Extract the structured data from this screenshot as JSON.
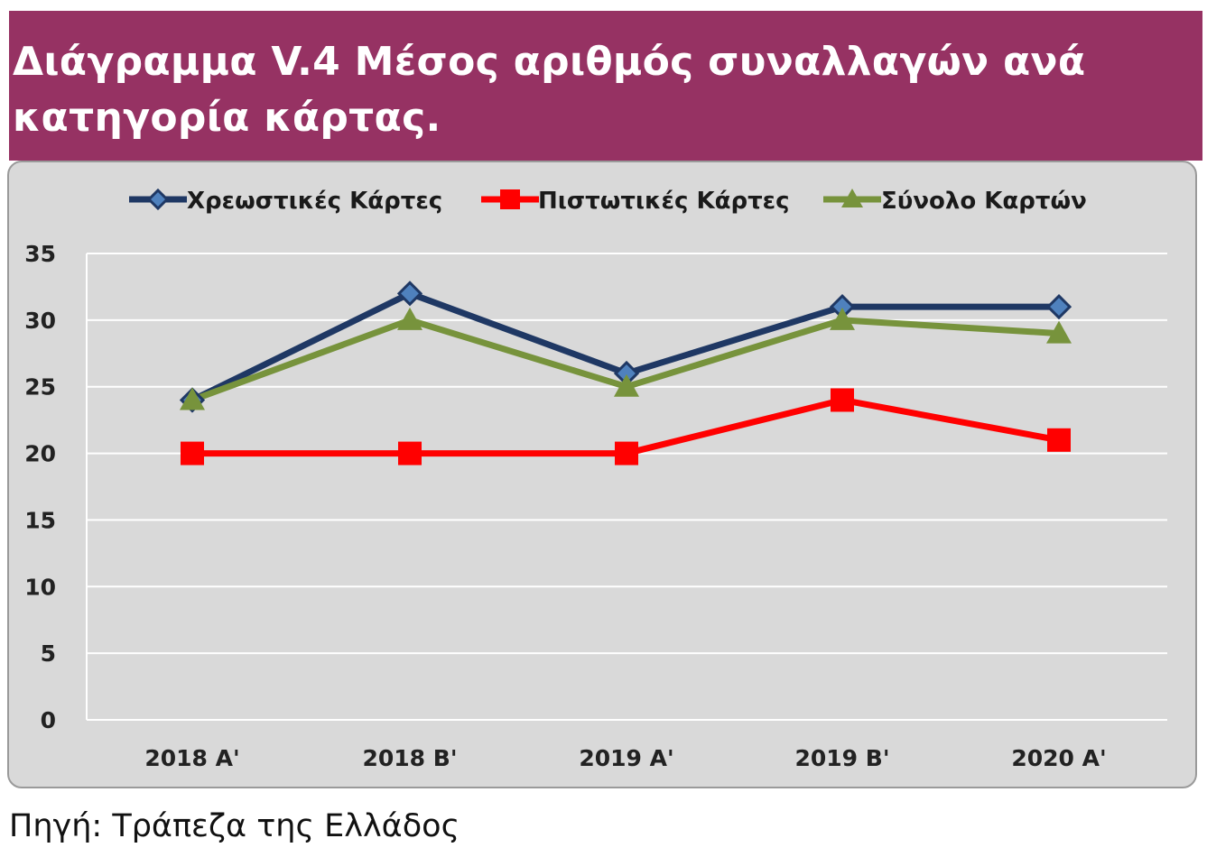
{
  "header": {
    "title": "Διάγραμμα V.4 Μέσος αριθμός συναλλαγών ανά κατηγορία κάρτας."
  },
  "source": "Πηγή: Τράπεζα της Ελλάδος",
  "colors": {
    "header_bg": "#963263",
    "plot_bg": "#d9d9d9"
  },
  "chart_data": {
    "type": "line",
    "title": "",
    "xlabel": "",
    "ylabel": "",
    "categories": [
      "2018 A'",
      "2018 B'",
      "2019 A'",
      "2019 B'",
      "2020 A'"
    ],
    "ylim": [
      0,
      35
    ],
    "yticks": [
      0,
      5,
      10,
      15,
      20,
      25,
      30,
      35
    ],
    "grid": true,
    "legend_position": "top",
    "series": [
      {
        "name": "Χρεωστικές Κάρτες",
        "values": [
          24,
          32,
          26,
          31,
          31
        ],
        "color": "#1f3864",
        "marker": "diamond"
      },
      {
        "name": "Πιστωτικές Κάρτες",
        "values": [
          20,
          20,
          20,
          24,
          21
        ],
        "color": "#ff0000",
        "marker": "square"
      },
      {
        "name": "Σύνολο Καρτών",
        "values": [
          24,
          30,
          25,
          30,
          29
        ],
        "color": "#77933c",
        "marker": "triangle"
      }
    ]
  }
}
